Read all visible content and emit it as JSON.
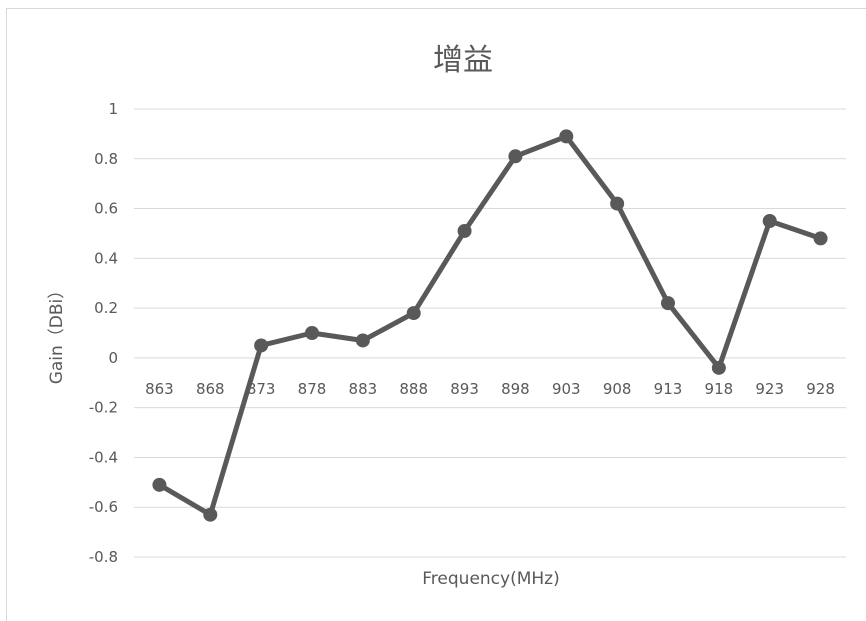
{
  "chart_data": {
    "type": "line",
    "title": "增益",
    "xlabel": "Frequency(MHz)",
    "ylabel": "Gain（DBi）",
    "categories": [
      "863",
      "868",
      "873",
      "878",
      "883",
      "888",
      "893",
      "898",
      "903",
      "908",
      "913",
      "918",
      "923",
      "928"
    ],
    "series": [
      {
        "values": [
          -0.51,
          -0.63,
          0.05,
          0.1,
          0.07,
          0.18,
          0.51,
          0.81,
          0.89,
          0.62,
          0.22,
          -0.04,
          0.55,
          0.48
        ]
      }
    ],
    "ylim": [
      -0.8,
      1.0
    ],
    "yticks": [
      "1",
      "0.8",
      "0.6",
      "0.4",
      "0.2",
      "0",
      "-0.2",
      "-0.4",
      "-0.6",
      "-0.8"
    ],
    "ytick_values": [
      1,
      0.8,
      0.6,
      0.4,
      0.2,
      0,
      -0.2,
      -0.4,
      -0.6,
      -0.8
    ],
    "grid": true,
    "legend": "none",
    "colors": {
      "series": "#595959",
      "grid": "#d9d9d9",
      "text": "#595959"
    }
  }
}
